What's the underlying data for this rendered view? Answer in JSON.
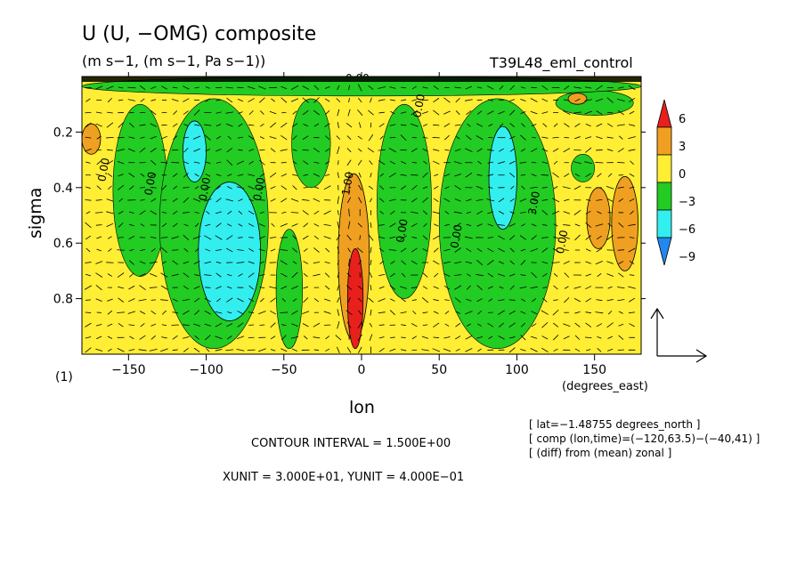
{
  "chart_data": {
    "type": "heatmap",
    "title": "U (U, −OMG) composite",
    "units": "(m s−1, (m s−1, Pa s−1))",
    "experiment": "T39L48_eml_control",
    "xlabel": "lon",
    "ylabel": "sigma",
    "x_unit_label": "(degrees_east)",
    "panel_label": "(1)",
    "xlim": [
      -180,
      180
    ],
    "ylim": [
      1.0,
      0.0
    ],
    "y_inverted": true,
    "xticks": [
      -150,
      -100,
      -50,
      0,
      50,
      100,
      150
    ],
    "yticks": [
      0.2,
      0.4,
      0.6,
      0.8
    ],
    "xtick_labels": [
      "−150",
      "−100",
      "−50",
      "0",
      "50",
      "100",
      "150"
    ],
    "ytick_labels": [
      "0.2",
      "0.4",
      "0.6",
      "0.8"
    ],
    "colorbar": {
      "levels": [
        6,
        3,
        0,
        -3,
        -6,
        -9
      ],
      "labels": [
        "6",
        "3",
        "0",
        "−3",
        "−6",
        "−9"
      ],
      "colors": [
        "#e8201c",
        "#f0a020",
        "#ffee33",
        "#22cc22",
        "#33eeee",
        "#2288ee"
      ]
    },
    "contour_labels": [
      {
        "text": "0.00",
        "lon": -165,
        "sigma": 0.38
      },
      {
        "text": "0.00",
        "lon": -135,
        "sigma": 0.43
      },
      {
        "text": "0.00",
        "lon": -100,
        "sigma": 0.45
      },
      {
        "text": "0.00",
        "lon": -65,
        "sigma": 0.45
      },
      {
        "text": "1.00",
        "lon": -8,
        "sigma": 0.43
      },
      {
        "text": "0.00",
        "lon": 27,
        "sigma": 0.6
      },
      {
        "text": "0.00",
        "lon": 62,
        "sigma": 0.62
      },
      {
        "text": "3.00",
        "lon": 112,
        "sigma": 0.5
      },
      {
        "text": "0.00",
        "lon": 130,
        "sigma": 0.64
      },
      {
        "text": "0.00",
        "lon": 38,
        "sigma": 0.15
      }
    ],
    "regions": [
      {
        "value": 3,
        "lon": [
          -180,
          -168
        ],
        "sigma": [
          0.17,
          0.28
        ]
      },
      {
        "value": 3,
        "lon": [
          -15,
          5
        ],
        "sigma": [
          0.35,
          0.95
        ]
      },
      {
        "value": 6,
        "lon": [
          -9,
          1
        ],
        "sigma": [
          0.62,
          0.98
        ]
      },
      {
        "value": 3,
        "lon": [
          145,
          160
        ],
        "sigma": [
          0.4,
          0.62
        ]
      },
      {
        "value": 3,
        "lon": [
          161,
          178
        ],
        "sigma": [
          0.36,
          0.7
        ]
      },
      {
        "value": 3,
        "lon": [
          133,
          145
        ],
        "sigma": [
          0.06,
          0.1
        ]
      },
      {
        "value": -6,
        "lon": [
          -115,
          -100
        ],
        "sigma": [
          0.16,
          0.38
        ]
      },
      {
        "value": -6,
        "lon": [
          -105,
          -65
        ],
        "sigma": [
          0.38,
          0.88
        ]
      },
      {
        "value": -6,
        "lon": [
          82,
          100
        ],
        "sigma": [
          0.18,
          0.55
        ]
      }
    ],
    "grid": false,
    "legend_position": "right",
    "reference_vector": {
      "xunit": "3.000E+01",
      "yunit": "4.000E−01"
    }
  },
  "notes": {
    "contour_interval": "CONTOUR INTERVAL = 1.500E+00",
    "units_line": "XUNIT = 3.000E+01, YUNIT = 4.000E−01",
    "lat": "[ lat=−1.48755 degrees_north ]",
    "comp": "[ comp (lon,time)=(−120,63.5)−(−40,41) ]",
    "diff": "[ (diff) from (mean) zonal ]",
    "top_label": "0.00"
  }
}
